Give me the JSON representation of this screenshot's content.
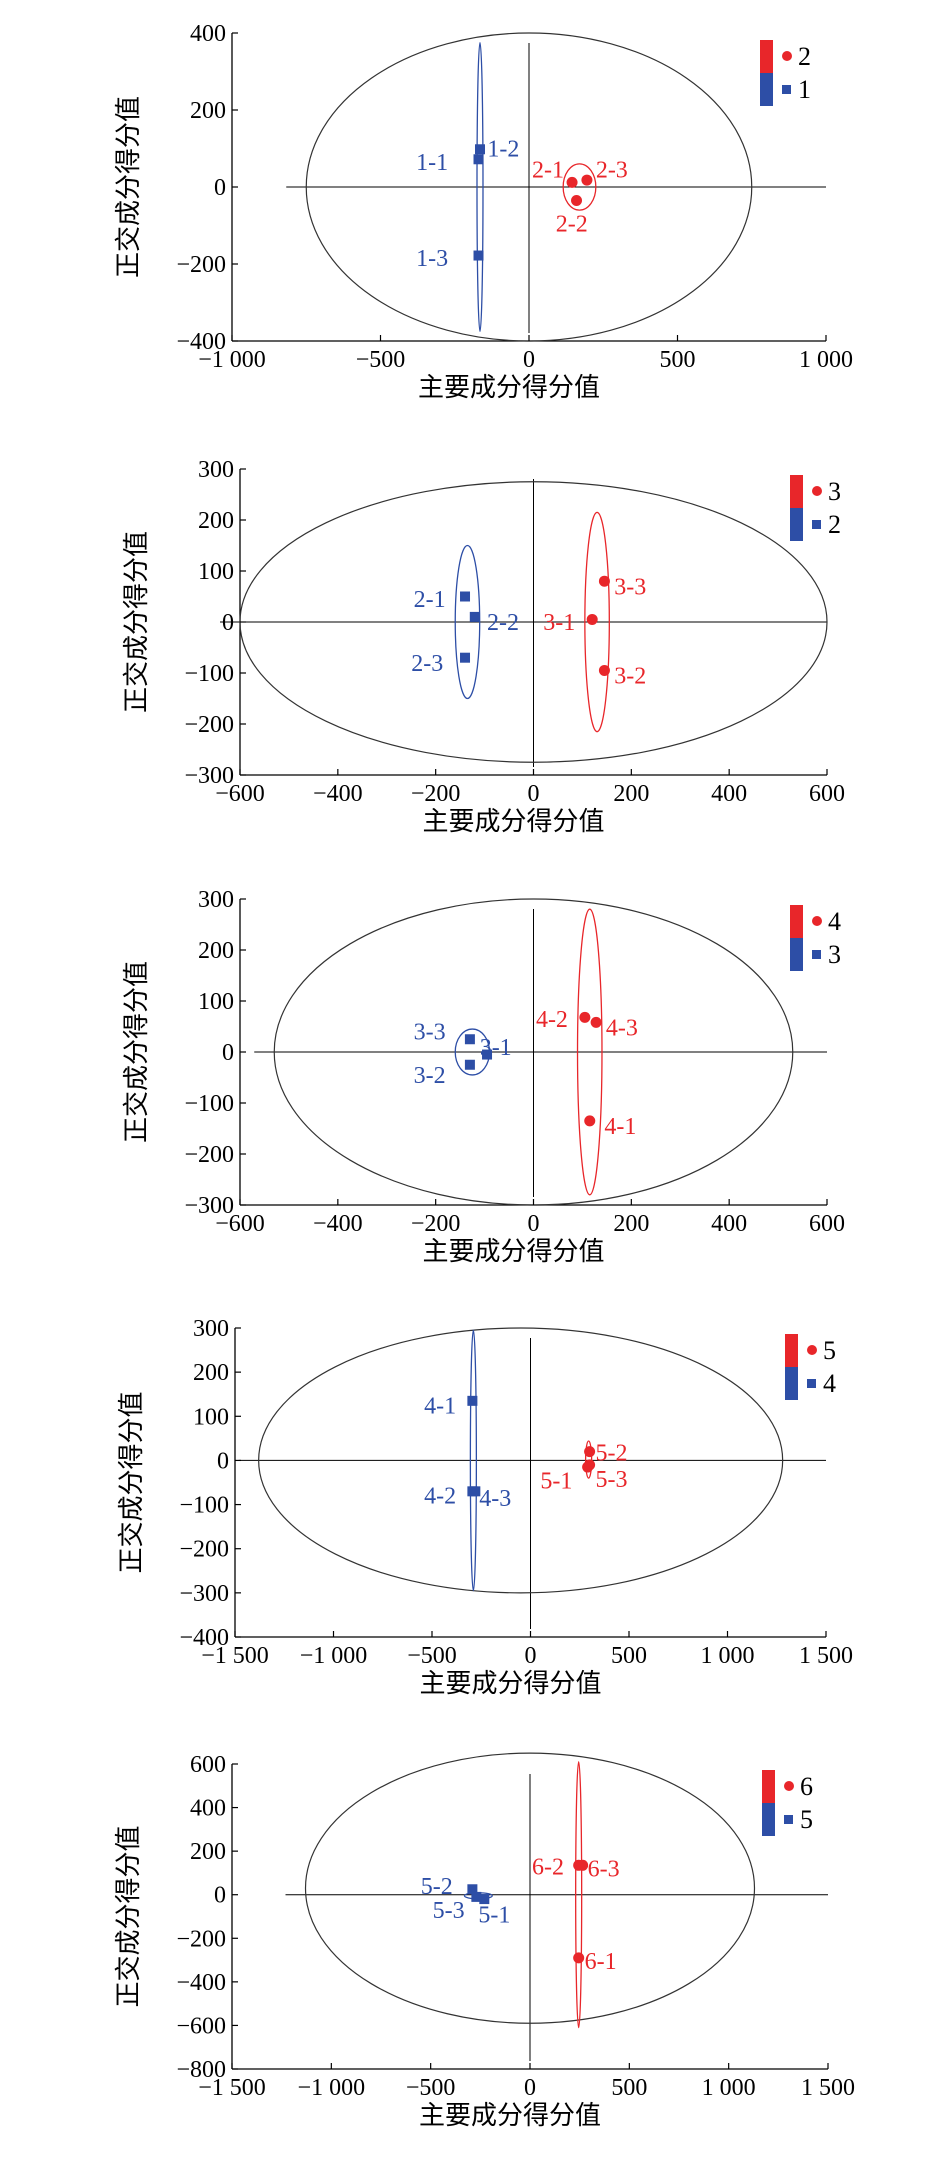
{
  "colors": {
    "red": "#e8262a",
    "blue": "#2d4ea6",
    "axis": "#000000",
    "ellipse": "#333333"
  },
  "chart_data": [
    {
      "type": "scatter",
      "xlabel": "主要成分得分值",
      "ylabel": "正交成分得分值",
      "xlim": [
        -1000,
        1000
      ],
      "ylim": [
        -400,
        400
      ],
      "xticks": [
        -1000,
        -500,
        0,
        500,
        1000
      ],
      "xtick_labels": [
        "−1 000",
        "−500",
        "0",
        "500",
        "1 000"
      ],
      "yticks": [
        -400,
        -200,
        0,
        200,
        400
      ],
      "ytick_labels": [
        "−400",
        "−200",
        "0",
        "200",
        "400"
      ],
      "outer_ellipse": {
        "cx": 0,
        "cy": 0,
        "rx": 750,
        "ry": 400
      },
      "legend": [
        {
          "name": "2",
          "color": "red",
          "marker": "circle"
        },
        {
          "name": "1",
          "color": "blue",
          "marker": "square"
        }
      ],
      "series": [
        {
          "name": "1",
          "color": "blue",
          "marker": "square",
          "ellipse": {
            "cx": -165,
            "cy": 0,
            "rx": 6,
            "ry": 375
          },
          "points": [
            {
              "label": "1-1",
              "x": -170,
              "y": 72,
              "lx": -380,
              "ly": 65
            },
            {
              "label": "1-2",
              "x": -165,
              "y": 98,
              "lx": -140,
              "ly": 100
            },
            {
              "label": "1-3",
              "x": -170,
              "y": -178,
              "lx": -380,
              "ly": -185
            }
          ]
        },
        {
          "name": "2",
          "color": "red",
          "marker": "circle",
          "ellipse": {
            "cx": 170,
            "cy": 0,
            "rx": 55,
            "ry": 60,
            "rot": 0
          },
          "points": [
            {
              "label": "2-1",
              "x": 145,
              "y": 12,
              "lx": 10,
              "ly": 45
            },
            {
              "label": "2-2",
              "x": 160,
              "y": -35,
              "lx": 90,
              "ly": -95
            },
            {
              "label": "2-3",
              "x": 195,
              "y": 18,
              "lx": 225,
              "ly": 45
            }
          ]
        }
      ]
    },
    {
      "type": "scatter",
      "xlabel": "主要成分得分值",
      "ylabel": "正交成分得分值",
      "xlim": [
        -600,
        600
      ],
      "ylim": [
        -300,
        300
      ],
      "xticks": [
        -600,
        -400,
        -200,
        0,
        200,
        400,
        600
      ],
      "xtick_labels": [
        "−600",
        "−400",
        "−200",
        "0",
        "200",
        "400",
        "600"
      ],
      "yticks": [
        -300,
        -200,
        -100,
        0,
        100,
        200,
        300
      ],
      "ytick_labels": [
        "−300",
        "−200",
        "−100",
        "0",
        "100",
        "200",
        "300"
      ],
      "outer_ellipse": {
        "cx": 0,
        "cy": 0,
        "rx": 600,
        "ry": 275
      },
      "legend": [
        {
          "name": "3",
          "color": "red",
          "marker": "circle"
        },
        {
          "name": "2",
          "color": "blue",
          "marker": "square"
        }
      ],
      "series": [
        {
          "name": "2",
          "color": "blue",
          "marker": "square",
          "ellipse": {
            "cx": -135,
            "cy": 0,
            "rx": 25,
            "ry": 150
          },
          "points": [
            {
              "label": "2-1",
              "x": -140,
              "y": 50,
              "lx": -245,
              "ly": 45
            },
            {
              "label": "2-2",
              "x": -120,
              "y": 10,
              "lx": -95,
              "ly": 0
            },
            {
              "label": "2-3",
              "x": -140,
              "y": -70,
              "lx": -250,
              "ly": -80
            }
          ]
        },
        {
          "name": "3",
          "color": "red",
          "marker": "circle",
          "ellipse": {
            "cx": 130,
            "cy": 0,
            "rx": 25,
            "ry": 215
          },
          "points": [
            {
              "label": "3-1",
              "x": 120,
              "y": 5,
              "lx": 20,
              "ly": 0
            },
            {
              "label": "3-2",
              "x": 145,
              "y": -95,
              "lx": 165,
              "ly": -105
            },
            {
              "label": "3-3",
              "x": 145,
              "y": 80,
              "lx": 165,
              "ly": 70
            }
          ]
        }
      ]
    },
    {
      "type": "scatter",
      "xlabel": "主要成分得分值",
      "ylabel": "正交成分得分值",
      "xlim": [
        -600,
        600
      ],
      "ylim": [
        -300,
        300
      ],
      "xticks": [
        -600,
        -400,
        -200,
        0,
        200,
        400,
        600
      ],
      "xtick_labels": [
        "−600",
        "−400",
        "−200",
        "0",
        "200",
        "400",
        "600"
      ],
      "yticks": [
        -300,
        -200,
        -100,
        0,
        100,
        200,
        300
      ],
      "ytick_labels": [
        "−300",
        "−200",
        "−100",
        "0",
        "100",
        "200",
        "300"
      ],
      "outer_ellipse": {
        "cx": 0,
        "cy": 0,
        "rx": 530,
        "ry": 300
      },
      "legend": [
        {
          "name": "4",
          "color": "red",
          "marker": "circle"
        },
        {
          "name": "3",
          "color": "blue",
          "marker": "square"
        }
      ],
      "series": [
        {
          "name": "3",
          "color": "blue",
          "marker": "square",
          "ellipse": {
            "cx": -125,
            "cy": 0,
            "rx": 35,
            "ry": 45
          },
          "points": [
            {
              "label": "3-1",
              "x": -95,
              "y": -5,
              "lx": -110,
              "ly": 10
            },
            {
              "label": "3-2",
              "x": -130,
              "y": -25,
              "lx": -245,
              "ly": -45
            },
            {
              "label": "3-3",
              "x": -130,
              "y": 25,
              "lx": -245,
              "ly": 40
            }
          ]
        },
        {
          "name": "4",
          "color": "red",
          "marker": "circle",
          "ellipse": {
            "cx": 115,
            "cy": 0,
            "rx": 25,
            "ry": 280
          },
          "points": [
            {
              "label": "4-1",
              "x": 115,
              "y": -135,
              "lx": 145,
              "ly": -145
            },
            {
              "label": "4-2",
              "x": 105,
              "y": 68,
              "lx": 5,
              "ly": 65
            },
            {
              "label": "4-3",
              "x": 128,
              "y": 58,
              "lx": 148,
              "ly": 48
            }
          ]
        }
      ]
    },
    {
      "type": "scatter",
      "xlabel": "主要成分得分值",
      "ylabel": "正交成分得分值",
      "xlim": [
        -1500,
        1500
      ],
      "ylim": [
        -400,
        300
      ],
      "xticks": [
        -1500,
        -1000,
        -500,
        0,
        500,
        1000,
        1500
      ],
      "xtick_labels": [
        "−1 500",
        "−1 000",
        "−500",
        "0",
        "500",
        "1 000",
        "1 500"
      ],
      "yticks": [
        -400,
        -300,
        -200,
        -100,
        0,
        100,
        200,
        300
      ],
      "ytick_labels": [
        "−400",
        "−300",
        "−200",
        "−100",
        "0",
        "100",
        "200",
        "300"
      ],
      "outer_ellipse": {
        "cx": -50,
        "cy": 0,
        "rx": 1330,
        "ry": 300
      },
      "legend": [
        {
          "name": "5",
          "color": "red",
          "marker": "circle"
        },
        {
          "name": "4",
          "color": "blue",
          "marker": "square"
        }
      ],
      "series": [
        {
          "name": "4",
          "color": "blue",
          "marker": "square",
          "ellipse": {
            "cx": -290,
            "cy": 0,
            "rx": 15,
            "ry": 295
          },
          "points": [
            {
              "label": "4-1",
              "x": -295,
              "y": 135,
              "lx": -540,
              "ly": 125
            },
            {
              "label": "4-2",
              "x": -295,
              "y": -70,
              "lx": -540,
              "ly": -80
            },
            {
              "label": "4-3",
              "x": -280,
              "y": -70,
              "lx": -260,
              "ly": -85
            }
          ]
        },
        {
          "name": "5",
          "color": "red",
          "marker": "circle",
          "ellipse": {
            "cx": 295,
            "cy": 2,
            "rx": 15,
            "ry": 42
          },
          "points": [
            {
              "label": "5-1",
              "x": 290,
              "y": -15,
              "lx": 50,
              "ly": -45
            },
            {
              "label": "5-2",
              "x": 300,
              "y": 20,
              "lx": 330,
              "ly": 18
            },
            {
              "label": "5-3",
              "x": 300,
              "y": -10,
              "lx": 330,
              "ly": -42
            }
          ]
        }
      ]
    },
    {
      "type": "scatter",
      "xlabel": "主要成分得分值",
      "ylabel": "正交成分得分值",
      "xlim": [
        -1500,
        1500
      ],
      "ylim": [
        -800,
        600
      ],
      "xticks": [
        -1500,
        -1000,
        -500,
        0,
        500,
        1000,
        1500
      ],
      "xtick_labels": [
        "−1 500",
        "−1 000",
        "−500",
        "0",
        "500",
        "1 000",
        "1 500"
      ],
      "yticks": [
        -800,
        -600,
        -400,
        -200,
        0,
        200,
        400,
        600
      ],
      "ytick_labels": [
        "−800",
        "−600",
        "−400",
        "−200",
        "0",
        "200",
        "400",
        "600"
      ],
      "outer_ellipse": {
        "cx": 0,
        "cy": 30,
        "rx": 1130,
        "ry": 620
      },
      "legend": [
        {
          "name": "6",
          "color": "red",
          "marker": "circle"
        },
        {
          "name": "5",
          "color": "blue",
          "marker": "square"
        }
      ],
      "series": [
        {
          "name": "5",
          "color": "blue",
          "marker": "square",
          "ellipse": {
            "cx": -260,
            "cy": -5,
            "rx": 70,
            "ry": 14
          },
          "points": [
            {
              "label": "5-1",
              "x": -230,
              "y": -20,
              "lx": -260,
              "ly": -90
            },
            {
              "label": "5-2",
              "x": -290,
              "y": 25,
              "lx": -550,
              "ly": 40
            },
            {
              "label": "5-3",
              "x": -270,
              "y": -10,
              "lx": -490,
              "ly": -70
            }
          ]
        },
        {
          "name": "6",
          "color": "red",
          "marker": "circle",
          "ellipse": {
            "cx": 245,
            "cy": 0,
            "rx": 12,
            "ry": 610
          },
          "points": [
            {
              "label": "6-1",
              "x": 245,
              "y": -290,
              "lx": 275,
              "ly": -305
            },
            {
              "label": "6-2",
              "x": 245,
              "y": 135,
              "lx": 10,
              "ly": 130
            },
            {
              "label": "6-3",
              "x": 265,
              "y": 135,
              "lx": 290,
              "ly": 120
            }
          ]
        }
      ]
    }
  ]
}
